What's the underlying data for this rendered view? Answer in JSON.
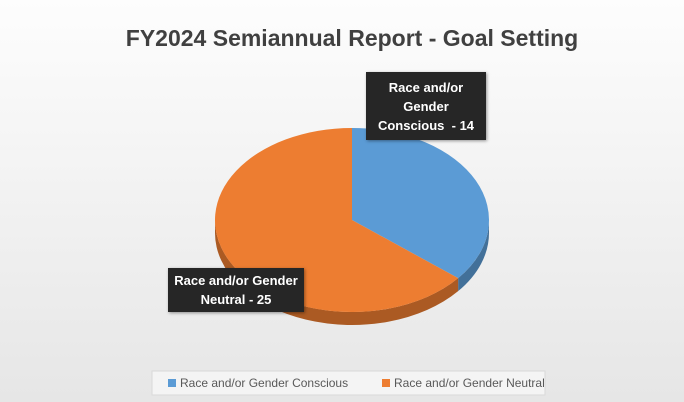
{
  "chart_data": {
    "type": "pie",
    "title": "FY2024 Semiannual Report - Goal Setting",
    "categories": [
      "Race and/or Gender Conscious",
      "Race and/or Gender Neutral"
    ],
    "values": [
      14,
      25
    ],
    "value_labels": [
      "Race and/or Gender Conscious  - 14",
      "Race and/or Gender Neutral - 25"
    ],
    "colors": [
      "#5b9bd5",
      "#ed7d31"
    ],
    "legend": "bottom"
  }
}
